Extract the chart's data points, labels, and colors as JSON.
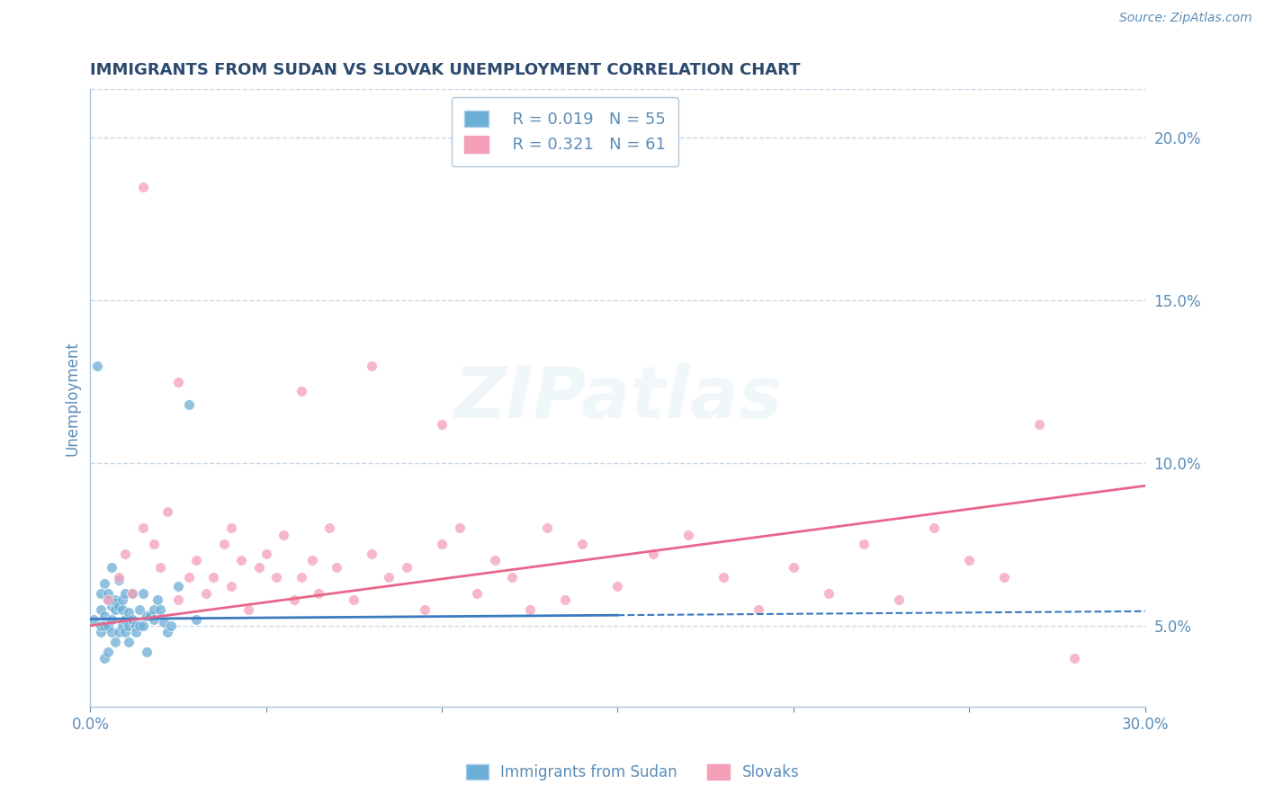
{
  "title": "IMMIGRANTS FROM SUDAN VS SLOVAK UNEMPLOYMENT CORRELATION CHART",
  "source": "Source: ZipAtlas.com",
  "ylabel": "Unemployment",
  "xlim": [
    0.0,
    0.3
  ],
  "ylim": [
    0.025,
    0.215
  ],
  "xticks": [
    0.0,
    0.05,
    0.1,
    0.15,
    0.2,
    0.25,
    0.3
  ],
  "xticklabels": [
    "0.0%",
    "",
    "",
    "",
    "",
    "",
    "30.0%"
  ],
  "yticks_right": [
    0.05,
    0.1,
    0.15,
    0.2
  ],
  "yticklabels_right": [
    "5.0%",
    "10.0%",
    "15.0%",
    "20.0%"
  ],
  "blue_R": 0.019,
  "blue_N": 55,
  "pink_R": 0.321,
  "pink_N": 61,
  "blue_color": "#6baed6",
  "pink_color": "#f4a0b8",
  "blue_line_color": "#3a7abf",
  "pink_line_color": "#e8668a",
  "axis_color": "#b0c4d8",
  "grid_color": "#c8d8e8",
  "title_color": "#2c4a6e",
  "label_color": "#5b8db8",
  "watermark": "ZIPatlas",
  "blue_scatter_x": [
    0.001,
    0.002,
    0.003,
    0.003,
    0.003,
    0.003,
    0.004,
    0.004,
    0.004,
    0.004,
    0.005,
    0.005,
    0.005,
    0.005,
    0.006,
    0.006,
    0.006,
    0.006,
    0.007,
    0.007,
    0.007,
    0.007,
    0.008,
    0.008,
    0.008,
    0.009,
    0.009,
    0.009,
    0.01,
    0.01,
    0.01,
    0.011,
    0.011,
    0.011,
    0.012,
    0.012,
    0.013,
    0.013,
    0.014,
    0.014,
    0.015,
    0.015,
    0.016,
    0.016,
    0.017,
    0.018,
    0.018,
    0.019,
    0.02,
    0.021,
    0.022,
    0.023,
    0.025,
    0.028,
    0.03
  ],
  "blue_scatter_y": [
    0.052,
    0.13,
    0.06,
    0.055,
    0.048,
    0.05,
    0.053,
    0.04,
    0.063,
    0.05,
    0.058,
    0.06,
    0.042,
    0.05,
    0.056,
    0.052,
    0.068,
    0.048,
    0.058,
    0.057,
    0.055,
    0.045,
    0.056,
    0.048,
    0.064,
    0.05,
    0.055,
    0.058,
    0.052,
    0.06,
    0.048,
    0.054,
    0.05,
    0.045,
    0.06,
    0.052,
    0.05,
    0.048,
    0.055,
    0.05,
    0.06,
    0.05,
    0.053,
    0.042,
    0.053,
    0.055,
    0.052,
    0.058,
    0.055,
    0.051,
    0.048,
    0.05,
    0.062,
    0.118,
    0.052
  ],
  "pink_scatter_x": [
    0.005,
    0.008,
    0.01,
    0.012,
    0.015,
    0.018,
    0.02,
    0.022,
    0.025,
    0.028,
    0.03,
    0.033,
    0.035,
    0.038,
    0.04,
    0.043,
    0.045,
    0.048,
    0.05,
    0.053,
    0.055,
    0.058,
    0.06,
    0.063,
    0.065,
    0.068,
    0.07,
    0.075,
    0.08,
    0.085,
    0.09,
    0.095,
    0.1,
    0.105,
    0.11,
    0.115,
    0.12,
    0.125,
    0.13,
    0.135,
    0.14,
    0.15,
    0.16,
    0.17,
    0.18,
    0.19,
    0.2,
    0.21,
    0.22,
    0.23,
    0.24,
    0.25,
    0.26,
    0.27,
    0.28,
    0.015,
    0.025,
    0.04,
    0.06,
    0.08,
    0.1
  ],
  "pink_scatter_y": [
    0.058,
    0.065,
    0.072,
    0.06,
    0.08,
    0.075,
    0.068,
    0.085,
    0.058,
    0.065,
    0.07,
    0.06,
    0.065,
    0.075,
    0.062,
    0.07,
    0.055,
    0.068,
    0.072,
    0.065,
    0.078,
    0.058,
    0.065,
    0.07,
    0.06,
    0.08,
    0.068,
    0.058,
    0.072,
    0.065,
    0.068,
    0.055,
    0.075,
    0.08,
    0.06,
    0.07,
    0.065,
    0.055,
    0.08,
    0.058,
    0.075,
    0.062,
    0.072,
    0.078,
    0.065,
    0.055,
    0.068,
    0.06,
    0.075,
    0.058,
    0.08,
    0.07,
    0.065,
    0.112,
    0.04,
    0.185,
    0.125,
    0.08,
    0.122,
    0.13,
    0.112
  ]
}
